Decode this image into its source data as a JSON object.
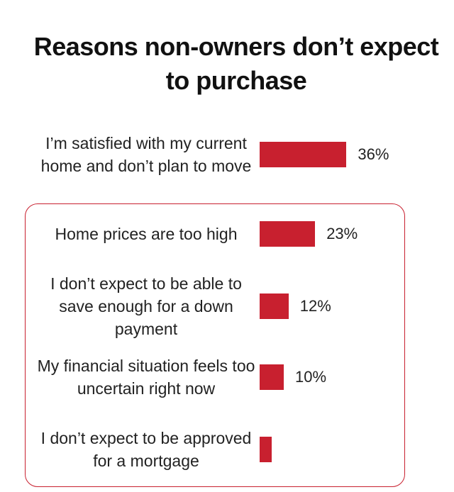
{
  "chart_data": {
    "type": "bar",
    "orientation": "horizontal",
    "title": "Reasons non-owners don’t expect to purchase",
    "categories": [
      "I’m satisfied with my current home and don’t plan to move",
      "Home prices are too high",
      "I don’t expect to be able to save enough for a down payment",
      "My financial situation feels too uncertain right now",
      "I don’t expect to be approved for a mortgage"
    ],
    "values": [
      36,
      23,
      12,
      10,
      5
    ],
    "value_labels": [
      "36%",
      "23%",
      "12%",
      "10%",
      null
    ],
    "color": "#c8202f"
  }
}
